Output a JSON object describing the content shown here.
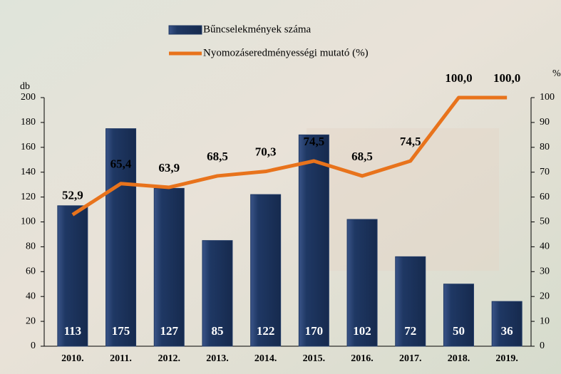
{
  "chart_data": {
    "type": "combo",
    "categories": [
      "2010.",
      "2011.",
      "2012.",
      "2013.",
      "2014.",
      "2015.",
      "2016.",
      "2017.",
      "2018.",
      "2019."
    ],
    "y_label": "db",
    "y2_label": "%",
    "series": [
      {
        "name": "Bűncselekmények száma",
        "type": "bar",
        "color": "#1f3864",
        "axis": "y",
        "values": [
          113,
          175,
          127,
          85,
          122,
          170,
          102,
          72,
          50,
          36
        ]
      },
      {
        "name": "Nyomozáseredményességi mutató (%)",
        "type": "line",
        "color": "#e8731c",
        "axis": "y2",
        "values": [
          52.9,
          65.4,
          63.9,
          68.5,
          70.3,
          74.5,
          68.5,
          74.5,
          100,
          100
        ],
        "value_labels": [
          "52,9",
          "65,4",
          "63,9",
          "68,5",
          "70,3",
          "74,5",
          "68,5",
          "74,5",
          "100,0",
          "100,0"
        ]
      }
    ],
    "ylim": [
      0,
      200
    ],
    "yticks": [
      0,
      20,
      40,
      60,
      80,
      100,
      120,
      140,
      160,
      180,
      200
    ],
    "y2lim": [
      0,
      100
    ],
    "y2ticks": [
      0,
      10,
      20,
      30,
      40,
      50,
      60,
      70,
      80,
      90,
      100
    ],
    "legend": "top",
    "grid": false
  }
}
